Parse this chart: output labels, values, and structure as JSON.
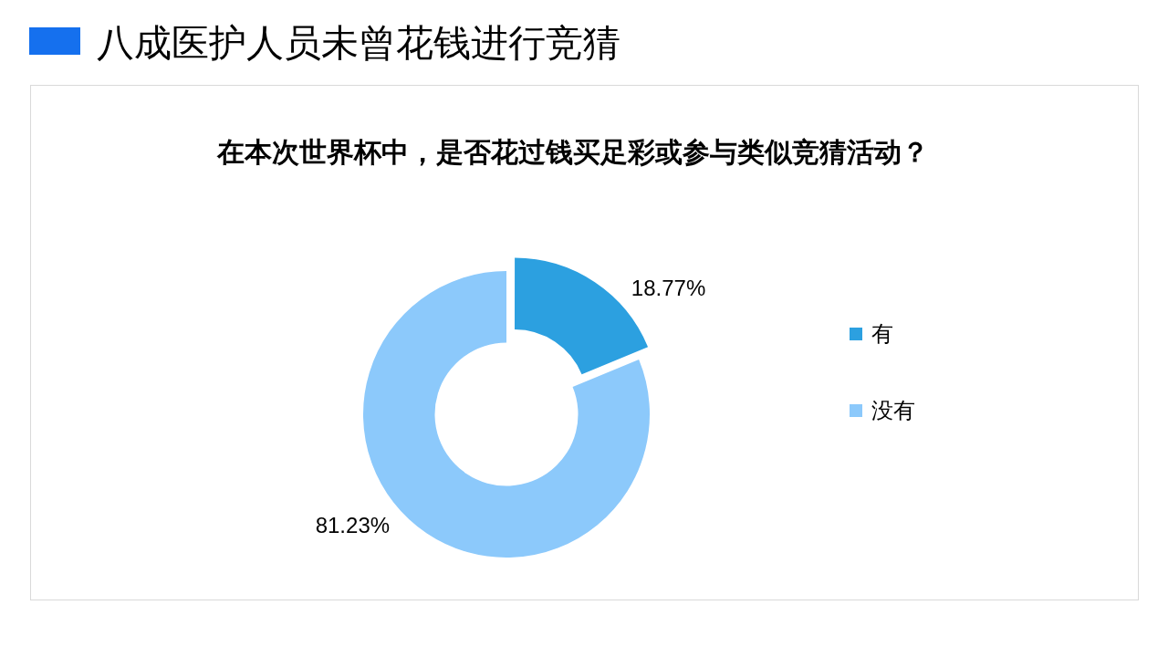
{
  "chart_data": {
    "type": "donut",
    "title": "八成医护人员未曾花钱进行竞猜",
    "subtitle": "在本次世界杯中，是否花过钱买足彩或参与类似竞猜活动？",
    "categories": [
      "有",
      "没有"
    ],
    "values": [
      18.77,
      81.23
    ],
    "colors": [
      "#2ca0e0",
      "#8cc9fb"
    ],
    "value_labels": [
      "18.77%",
      "81.23%"
    ],
    "legend": "right"
  }
}
